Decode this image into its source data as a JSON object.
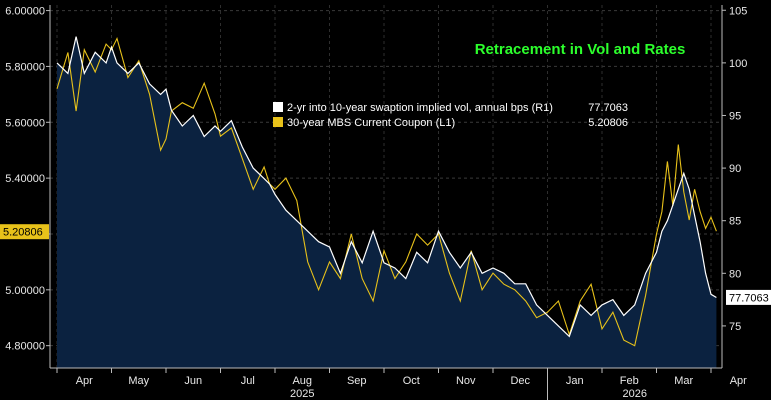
{
  "chart_data": {
    "type": "line",
    "title": "Retracement in Vol and Rates",
    "x_months": [
      "Apr",
      "May",
      "Jun",
      "Jul",
      "Aug",
      "Sep",
      "Oct",
      "Nov",
      "Dec",
      "Jan",
      "Feb",
      "Mar",
      "Apr"
    ],
    "years": [
      "2025",
      "2026"
    ],
    "left_axis": {
      "range": [
        4.72,
        6.02
      ],
      "ticks": [
        "4.80000",
        "5.00000",
        "5.20000",
        "5.40000",
        "5.60000",
        "5.80000",
        "6.00000"
      ]
    },
    "right_axis": {
      "range": [
        71.0,
        105.5
      ],
      "ticks": [
        "75",
        "80",
        "85",
        "90",
        "95",
        "100",
        "105"
      ]
    },
    "series": [
      {
        "name": "2-yr into 10-year swaption implied vol, annual bps (R1)",
        "last": "77.7063",
        "axis": "right",
        "color": "#ffffff",
        "x_unit": "month index (0 = early Apr 2025)",
        "x": [
          0,
          0.2,
          0.35,
          0.5,
          0.7,
          0.9,
          1.0,
          1.1,
          1.3,
          1.5,
          1.7,
          1.9,
          2.0,
          2.1,
          2.3,
          2.5,
          2.7,
          2.9,
          3.0,
          3.2,
          3.4,
          3.6,
          3.8,
          3.9,
          4.0,
          4.2,
          4.4,
          4.6,
          4.8,
          5.0,
          5.2,
          5.4,
          5.6,
          5.8,
          6.0,
          6.2,
          6.4,
          6.6,
          6.8,
          7.0,
          7.2,
          7.4,
          7.6,
          7.8,
          8.0,
          8.2,
          8.4,
          8.6,
          8.8,
          9.0,
          9.2,
          9.4,
          9.6,
          9.8,
          10.0,
          10.2,
          10.4,
          10.6,
          10.8,
          11.0,
          11.1,
          11.2,
          11.3,
          11.4,
          11.5,
          11.6,
          11.7,
          11.8,
          11.9,
          12.0,
          12.1
        ],
        "values": [
          100,
          99,
          102.5,
          99,
          101,
          100,
          101.5,
          100,
          99,
          100,
          98,
          97,
          97.5,
          95.5,
          94,
          95,
          93,
          94,
          93.5,
          94.5,
          92,
          90,
          89,
          88.5,
          87.5,
          86,
          85,
          84,
          83,
          82.5,
          80,
          83,
          81,
          84,
          81,
          80.5,
          79.5,
          82,
          81,
          84,
          82,
          80.5,
          82,
          80,
          80.5,
          80,
          79,
          79,
          77,
          76,
          75,
          74,
          77,
          76,
          77,
          77.5,
          76,
          77,
          80,
          82,
          84,
          85,
          86.5,
          88,
          89.5,
          88,
          85.5,
          83,
          80,
          78,
          77.7
        ]
      },
      {
        "name": "30-year MBS Current Coupon  (L1)",
        "last": "5.20806",
        "axis": "left",
        "color": "#e8c21a",
        "x_unit": "month index (0 = early Apr 2025)",
        "x": [
          0,
          0.2,
          0.35,
          0.5,
          0.7,
          0.9,
          1.0,
          1.1,
          1.3,
          1.5,
          1.7,
          1.9,
          2.0,
          2.1,
          2.3,
          2.5,
          2.7,
          2.9,
          3.0,
          3.2,
          3.4,
          3.6,
          3.8,
          3.9,
          4.0,
          4.2,
          4.4,
          4.6,
          4.8,
          5.0,
          5.2,
          5.4,
          5.6,
          5.8,
          6.0,
          6.2,
          6.4,
          6.6,
          6.8,
          7.0,
          7.2,
          7.4,
          7.6,
          7.8,
          8.0,
          8.2,
          8.4,
          8.6,
          8.8,
          9.0,
          9.2,
          9.4,
          9.6,
          9.8,
          10.0,
          10.2,
          10.4,
          10.6,
          10.8,
          11.0,
          11.1,
          11.2,
          11.3,
          11.4,
          11.5,
          11.6,
          11.7,
          11.8,
          11.9,
          12.0,
          12.1
        ],
        "values": [
          5.72,
          5.85,
          5.64,
          5.86,
          5.78,
          5.88,
          5.86,
          5.9,
          5.76,
          5.82,
          5.7,
          5.5,
          5.54,
          5.64,
          5.67,
          5.65,
          5.74,
          5.63,
          5.55,
          5.58,
          5.47,
          5.36,
          5.44,
          5.38,
          5.36,
          5.4,
          5.32,
          5.1,
          5.0,
          5.1,
          5.04,
          5.2,
          5.04,
          4.96,
          5.14,
          5.04,
          5.1,
          5.2,
          5.16,
          5.2,
          5.06,
          4.96,
          5.14,
          5.0,
          5.06,
          5.02,
          5.0,
          4.96,
          4.9,
          4.92,
          4.96,
          4.84,
          4.96,
          5.02,
          4.86,
          4.92,
          4.82,
          4.8,
          4.98,
          5.2,
          5.28,
          5.46,
          5.3,
          5.52,
          5.35,
          5.25,
          5.36,
          5.28,
          5.22,
          5.26,
          5.21
        ]
      }
    ]
  }
}
